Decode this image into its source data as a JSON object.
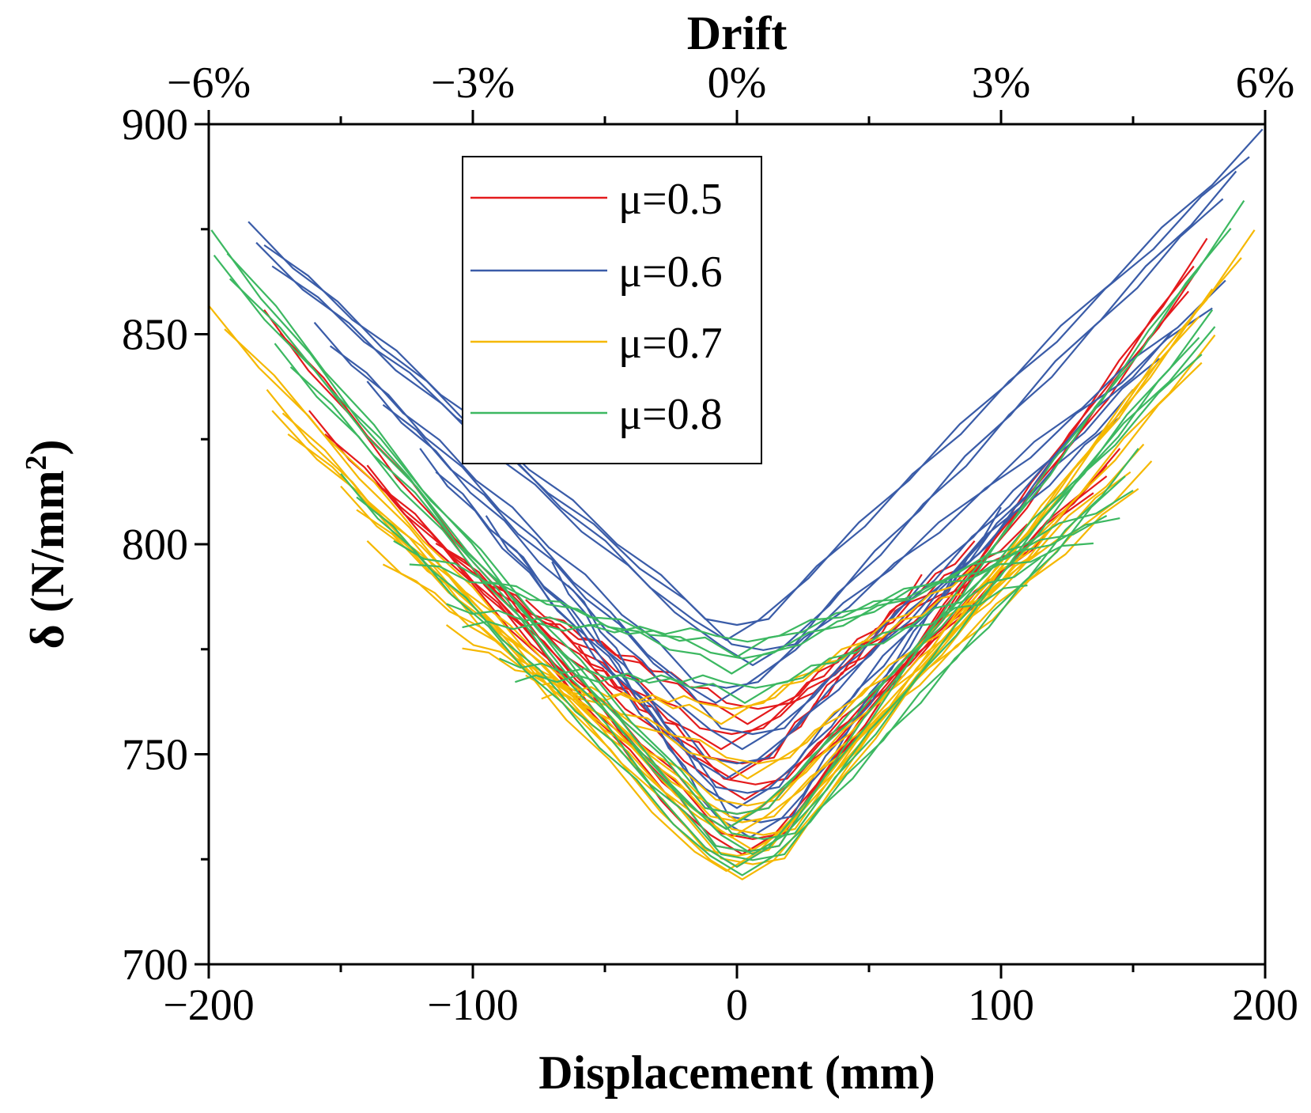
{
  "chart_data": {
    "type": "line",
    "title": "",
    "xlabel": "Displacement (mm)",
    "ylabel_prefix": "δ (N/mm",
    "ylabel_sup": "2",
    "ylabel_suffix": ")",
    "top_axis_title": "Drift",
    "xlim": [
      -200,
      200
    ],
    "ylim": [
      700,
      900
    ],
    "x_ticks": [
      -200,
      -100,
      0,
      100,
      200
    ],
    "x_tick_labels": [
      "−200",
      "−100",
      "0",
      "100",
      "200"
    ],
    "x_minor_ticks": [
      -150,
      -50,
      50,
      150
    ],
    "y_ticks": [
      700,
      750,
      800,
      850,
      900
    ],
    "y_tick_labels": [
      "700",
      "750",
      "800",
      "850",
      "900"
    ],
    "y_minor_ticks": [
      725,
      775,
      825,
      875
    ],
    "top_ticks": [
      -200,
      -100,
      0,
      100,
      200
    ],
    "top_tick_labels": [
      "−6%",
      "−3%",
      "0%",
      "3%",
      "6%"
    ],
    "top_minor_ticks": [
      -150,
      -50,
      50,
      150
    ],
    "legend_position": "top-center",
    "series": [
      {
        "name": "μ=0.5",
        "color": "#e41a1c",
        "loops": [
          {
            "left": [
              -179,
              855
            ],
            "min": [
              0,
              724
            ],
            "right": [
              178,
              872
            ]
          },
          {
            "left": [
              -162,
              831
            ],
            "min": [
              2,
              727
            ],
            "right": [
              176,
              866
            ]
          },
          {
            "left": [
              -140,
              818
            ],
            "min": [
              -4,
              733
            ],
            "right": [
              145,
              822
            ]
          },
          {
            "left": [
              -120,
              805
            ],
            "min": [
              3,
              740
            ],
            "right": [
              140,
              818
            ]
          },
          {
            "left": [
              -100,
              795
            ],
            "min": [
              -6,
              752
            ],
            "right": [
              110,
              804
            ]
          },
          {
            "left": [
              -80,
              786
            ],
            "min": [
              4,
              758
            ],
            "right": [
              90,
              800
            ]
          },
          {
            "left": [
              -60,
              775
            ],
            "min": [
              -2,
              745
            ],
            "right": [
              70,
              792
            ]
          }
        ]
      },
      {
        "name": "μ=0.6",
        "color": "#3a5ca8",
        "loops": [
          {
            "left": [
              -185,
              876
            ],
            "min": [
              -4,
              778
            ],
            "right": [
              199,
              898
            ]
          },
          {
            "left": [
              -182,
              871
            ],
            "min": [
              6,
              772
            ],
            "right": [
              189,
              888
            ]
          },
          {
            "left": [
              -160,
              852
            ],
            "min": [
              -8,
              763
            ],
            "right": [
              185,
              862
            ]
          },
          {
            "left": [
              -140,
              838
            ],
            "min": [
              2,
              752
            ],
            "right": [
              165,
              850
            ]
          },
          {
            "left": [
              -120,
              822
            ],
            "min": [
              -4,
              745
            ],
            "right": [
              150,
              836
            ]
          },
          {
            "left": [
              -95,
              806
            ],
            "min": [
              0,
              738
            ],
            "right": [
              120,
              820
            ]
          },
          {
            "left": [
              -70,
              795
            ],
            "min": [
              5,
              731
            ],
            "right": [
              100,
              808
            ]
          }
        ]
      },
      {
        "name": "μ=0.7",
        "color": "#f5b800",
        "loops": [
          {
            "left": [
              -200,
              856
            ],
            "min": [
              2,
              721
            ],
            "right": [
              196,
              874
            ]
          },
          {
            "left": [
              -178,
              836
            ],
            "min": [
              -4,
              723
            ],
            "right": [
              181,
              849
            ]
          },
          {
            "left": [
              -176,
              831
            ],
            "min": [
              6,
              728
            ],
            "right": [
              180,
              860
            ]
          },
          {
            "left": [
              -150,
              813
            ],
            "min": [
              -2,
              731
            ],
            "right": [
              157,
              819
            ]
          },
          {
            "left": [
              -140,
              800
            ],
            "min": [
              0,
              735
            ],
            "right": [
              154,
              823
            ]
          },
          {
            "left": [
              -110,
              780
            ],
            "min": [
              4,
              745
            ],
            "right": [
              120,
              804
            ]
          },
          {
            "left": [
              -80,
              768
            ],
            "min": [
              -6,
              758
            ],
            "right": [
              90,
              794
            ]
          }
        ]
      },
      {
        "name": "μ=0.8",
        "color": "#3cb861",
        "loops": [
          {
            "left": [
              -199,
              874
            ],
            "min": [
              0,
              724
            ],
            "right": [
              192,
              881
            ]
          },
          {
            "left": [
              -198,
              868
            ],
            "min": [
              6,
              727
            ],
            "right": [
              180,
              855
            ]
          },
          {
            "left": [
              -175,
              847
            ],
            "min": [
              -4,
              733
            ],
            "right": [
              181,
              851
            ]
          },
          {
            "left": [
              -150,
              816
            ],
            "min": [
              2,
              722
            ],
            "right": [
              152,
              822
            ]
          },
          {
            "left": [
              -130,
              800
            ],
            "min": [
              -2,
              770
            ],
            "right": [
              150,
              812
            ]
          },
          {
            "left": [
              -110,
              785
            ],
            "min": [
              0,
              774
            ],
            "right": [
              140,
              806
            ]
          },
          {
            "left": [
              -90,
              772
            ],
            "min": [
              3,
              763
            ],
            "right": [
              115,
              796
            ]
          }
        ]
      }
    ]
  }
}
